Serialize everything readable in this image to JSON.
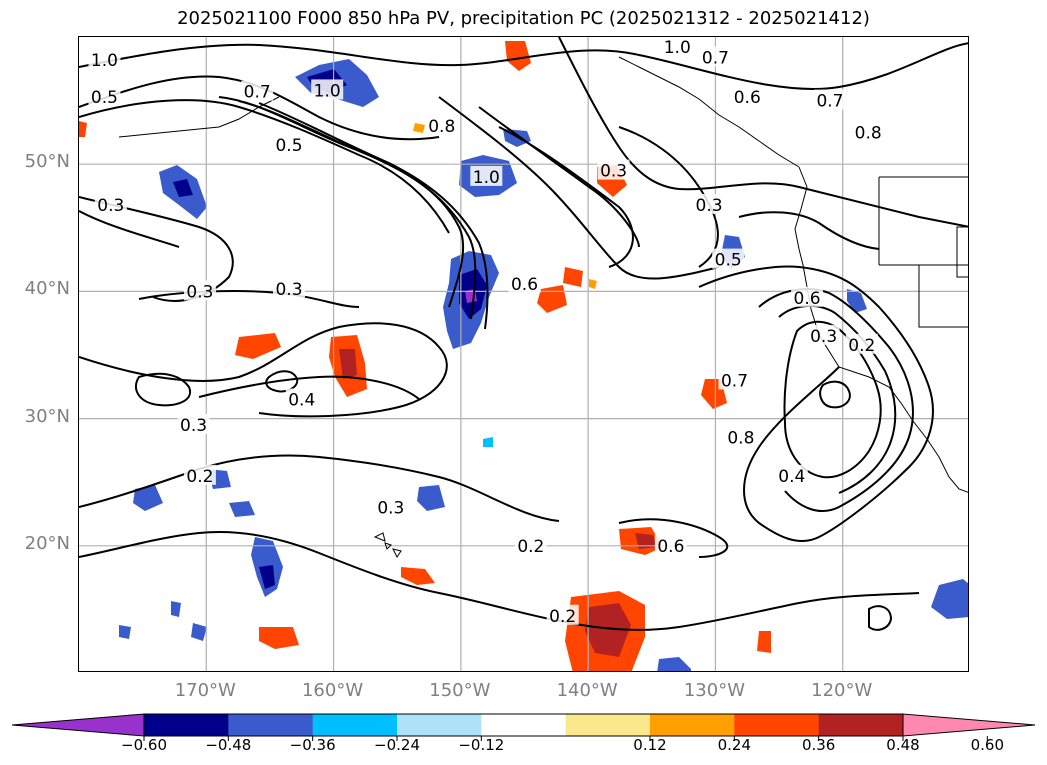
{
  "title": "2025021100 F000 850 hPa PV, precipitation PC (2025021312 - 2025021412)",
  "map": {
    "projection": "Plate Carree",
    "extent_lon": [
      -180,
      -110
    ],
    "extent_lat": [
      10,
      60
    ],
    "grid": true,
    "lat_ticks": [
      {
        "lat": 50,
        "label": "50°N"
      },
      {
        "lat": 40,
        "label": "40°N"
      },
      {
        "lat": 30,
        "label": "30°N"
      },
      {
        "lat": 20,
        "label": "20°N"
      }
    ],
    "lon_ticks": [
      {
        "lon": -170,
        "label": "170°W"
      },
      {
        "lon": -160,
        "label": "160°W"
      },
      {
        "lon": -150,
        "label": "150°W"
      },
      {
        "lon": -140,
        "label": "140°W"
      },
      {
        "lon": -130,
        "label": "130°W"
      },
      {
        "lon": -120,
        "label": "120°W"
      }
    ],
    "contour_labels": [
      {
        "text": "1.0",
        "lon": -178,
        "lat": 58.2
      },
      {
        "text": "0.5",
        "lon": -178,
        "lat": 55.3
      },
      {
        "text": "0.7",
        "lon": -166,
        "lat": 55.7
      },
      {
        "text": "0.5",
        "lon": -163.5,
        "lat": 51.5
      },
      {
        "text": "1.0",
        "lon": -160.5,
        "lat": 55.8
      },
      {
        "text": "0.8",
        "lon": -151.5,
        "lat": 53
      },
      {
        "text": "1.0",
        "lon": -148,
        "lat": 49
      },
      {
        "text": "0.3",
        "lon": -138,
        "lat": 49.5
      },
      {
        "text": "1.0",
        "lon": -133,
        "lat": 59.2
      },
      {
        "text": "0.7",
        "lon": -130,
        "lat": 58.4
      },
      {
        "text": "0.6",
        "lon": -127.5,
        "lat": 55.3
      },
      {
        "text": "0.7",
        "lon": -121,
        "lat": 55
      },
      {
        "text": "0.8",
        "lon": -118,
        "lat": 52.5
      },
      {
        "text": "0.3",
        "lon": -177.5,
        "lat": 46.8
      },
      {
        "text": "0.3",
        "lon": -170.5,
        "lat": 40
      },
      {
        "text": "0.3",
        "lon": -163.5,
        "lat": 40.2
      },
      {
        "text": "0.6",
        "lon": -145,
        "lat": 40.6
      },
      {
        "text": "0.3",
        "lon": -130.5,
        "lat": 46.8
      },
      {
        "text": "0.5",
        "lon": -129,
        "lat": 42.5
      },
      {
        "text": "0.6",
        "lon": -122.8,
        "lat": 39.5
      },
      {
        "text": "0.3",
        "lon": -121.5,
        "lat": 36.5
      },
      {
        "text": "0.2",
        "lon": -118.5,
        "lat": 35.8
      },
      {
        "text": "0.7",
        "lon": -128.5,
        "lat": 33
      },
      {
        "text": "0.8",
        "lon": -128,
        "lat": 28.5
      },
      {
        "text": "0.4",
        "lon": -124,
        "lat": 25.5
      },
      {
        "text": "0.4",
        "lon": -162.5,
        "lat": 31.5
      },
      {
        "text": "0.3",
        "lon": -171,
        "lat": 29.5
      },
      {
        "text": "0.2",
        "lon": -170.5,
        "lat": 25.5
      },
      {
        "text": "0.3",
        "lon": -155.5,
        "lat": 23
      },
      {
        "text": "0.2",
        "lon": -144.5,
        "lat": 20
      },
      {
        "text": "0.6",
        "lon": -133.5,
        "lat": 20
      },
      {
        "text": "0.2",
        "lon": -142,
        "lat": 14.5
      }
    ]
  },
  "colorbar": {
    "tick_labels": [
      "−0.60",
      "−0.48",
      "−0.36",
      "−0.24",
      "−0.12",
      "0.12",
      "0.24",
      "0.36",
      "0.48",
      "0.60"
    ],
    "bin_colors": [
      "#9932cc",
      "#00008b",
      "#3a5bcc",
      "#00bfff",
      "#aee2f8",
      "#ffffff",
      "#fce88c",
      "#ffa000",
      "#ff4500",
      "#b22222",
      "#ff88b0"
    ]
  }
}
